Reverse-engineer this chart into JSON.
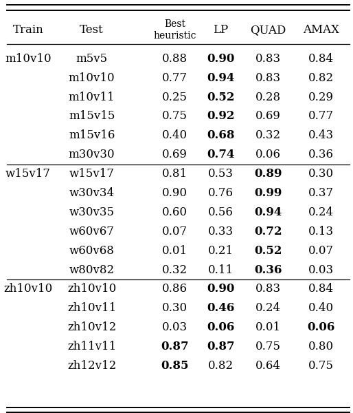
{
  "rows": [
    {
      "train": "m10v10",
      "test": "m5v5",
      "best": "0.88",
      "lp": "0.90",
      "quad": "0.83",
      "amax": "0.84",
      "bold": [
        false,
        true,
        false,
        false
      ]
    },
    {
      "train": "",
      "test": "m10v10",
      "best": "0.77",
      "lp": "0.94",
      "quad": "0.83",
      "amax": "0.82",
      "bold": [
        false,
        true,
        false,
        false
      ]
    },
    {
      "train": "",
      "test": "m10v11",
      "best": "0.25",
      "lp": "0.52",
      "quad": "0.28",
      "amax": "0.29",
      "bold": [
        false,
        true,
        false,
        false
      ]
    },
    {
      "train": "",
      "test": "m15v15",
      "best": "0.75",
      "lp": "0.92",
      "quad": "0.69",
      "amax": "0.77",
      "bold": [
        false,
        true,
        false,
        false
      ]
    },
    {
      "train": "",
      "test": "m15v16",
      "best": "0.40",
      "lp": "0.68",
      "quad": "0.32",
      "amax": "0.43",
      "bold": [
        false,
        true,
        false,
        false
      ]
    },
    {
      "train": "",
      "test": "m30v30",
      "best": "0.69",
      "lp": "0.74",
      "quad": "0.06",
      "amax": "0.36",
      "bold": [
        false,
        true,
        false,
        false
      ]
    },
    {
      "train": "w15v17",
      "test": "w15v17",
      "best": "0.81",
      "lp": "0.53",
      "quad": "0.89",
      "amax": "0.30",
      "bold": [
        false,
        false,
        true,
        false
      ]
    },
    {
      "train": "",
      "test": "w30v34",
      "best": "0.90",
      "lp": "0.76",
      "quad": "0.99",
      "amax": "0.37",
      "bold": [
        false,
        false,
        true,
        false
      ]
    },
    {
      "train": "",
      "test": "w30v35",
      "best": "0.60",
      "lp": "0.56",
      "quad": "0.94",
      "amax": "0.24",
      "bold": [
        false,
        false,
        true,
        false
      ]
    },
    {
      "train": "",
      "test": "w60v67",
      "best": "0.07",
      "lp": "0.33",
      "quad": "0.72",
      "amax": "0.13",
      "bold": [
        false,
        false,
        true,
        false
      ]
    },
    {
      "train": "",
      "test": "w60v68",
      "best": "0.01",
      "lp": "0.21",
      "quad": "0.52",
      "amax": "0.07",
      "bold": [
        false,
        false,
        true,
        false
      ]
    },
    {
      "train": "",
      "test": "w80v82",
      "best": "0.32",
      "lp": "0.11",
      "quad": "0.36",
      "amax": "0.03",
      "bold": [
        false,
        false,
        true,
        false
      ]
    },
    {
      "train": "zh10v10",
      "test": "zh10v10",
      "best": "0.86",
      "lp": "0.90",
      "quad": "0.83",
      "amax": "0.84",
      "bold": [
        false,
        true,
        false,
        false
      ]
    },
    {
      "train": "",
      "test": "zh10v11",
      "best": "0.30",
      "lp": "0.46",
      "quad": "0.24",
      "amax": "0.40",
      "bold": [
        false,
        true,
        false,
        false
      ]
    },
    {
      "train": "",
      "test": "zh10v12",
      "best": "0.03",
      "lp": "0.06",
      "quad": "0.01",
      "amax": "0.06",
      "bold": [
        false,
        true,
        false,
        true
      ]
    },
    {
      "train": "",
      "test": "zh11v11",
      "best": "0.87",
      "lp": "0.87",
      "quad": "0.75",
      "amax": "0.80",
      "bold": [
        true,
        true,
        false,
        false
      ]
    },
    {
      "train": "",
      "test": "zh12v12",
      "best": "0.85",
      "lp": "0.82",
      "quad": "0.64",
      "amax": "0.75",
      "bold": [
        true,
        false,
        false,
        false
      ]
    }
  ],
  "section_dividers_after": [
    5,
    11
  ],
  "figsize": [
    5.14,
    6.0
  ],
  "dpi": 100,
  "font_size": 12,
  "header_font_size": 12,
  "small_font_size": 10
}
